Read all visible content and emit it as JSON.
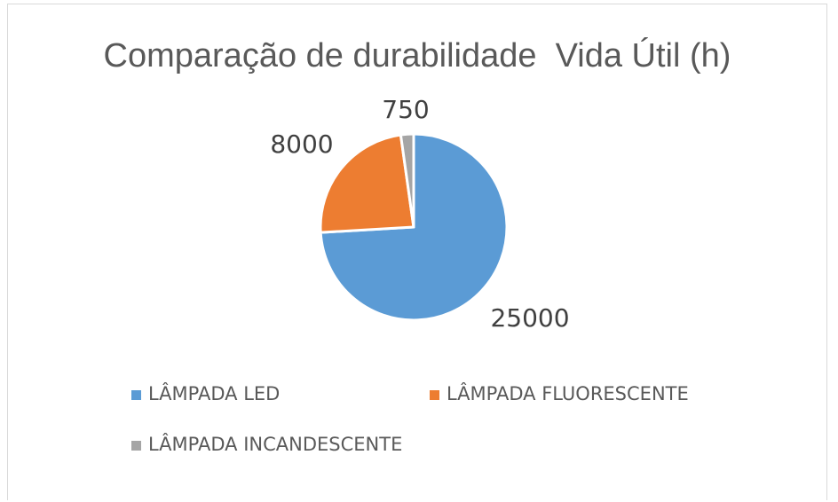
{
  "chart_data": {
    "type": "pie",
    "title": "Comparação de durabilidade  Vida Útil (h)",
    "categories": [
      "LÂMPADA LED",
      "LÂMPADA FLUORESCENTE",
      "LÂMPADA INCANDESCENTE"
    ],
    "values": [
      25000,
      8000,
      750
    ],
    "data_labels": [
      "25000",
      "8000",
      "750"
    ],
    "colors": [
      "#5b9bd5",
      "#ed7d31",
      "#a5a5a5"
    ],
    "start_angle_deg": 0,
    "direction": "clockwise",
    "legend_placement": "bottom"
  }
}
